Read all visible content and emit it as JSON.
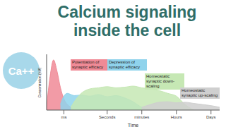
{
  "chart_data": {
    "type": "area",
    "title": "Calcium signaling inside the cell",
    "x_label": "Time",
    "y_label": "Concentration (nM)",
    "x": [
      0,
      2,
      4,
      6,
      8,
      10,
      12,
      14,
      16,
      20,
      25,
      30,
      35,
      40,
      45,
      50,
      55,
      60,
      65,
      70,
      75,
      80,
      85,
      90,
      95,
      100
    ],
    "xlim": [
      0,
      100
    ],
    "xticks": [
      {
        "value": 10,
        "label": "ms"
      },
      {
        "value": 35,
        "label": "Seconds"
      },
      {
        "value": 55,
        "label": "minutes"
      },
      {
        "value": 75,
        "label": "Hours"
      },
      {
        "value": 95,
        "label": "Days"
      }
    ],
    "ylim": [
      0,
      100
    ],
    "yticks": [
      0,
      100
    ],
    "tick_labels": "x",
    "grid": false,
    "series": [
      {
        "name": "Potentiation of synaptic efficacy",
        "color": "#f08a96",
        "values": [
          5,
          60,
          90,
          70,
          40,
          20,
          10,
          5,
          0,
          null,
          null,
          null,
          null,
          null,
          null,
          null,
          null,
          null,
          null,
          null,
          null,
          null,
          null,
          null,
          null,
          null
        ]
      },
      {
        "name": "Depression of synaptic efficacy",
        "color": "#8fd3ec",
        "values": [
          null,
          null,
          null,
          null,
          10,
          25,
          30,
          28,
          26,
          27,
          25,
          28,
          24,
          26,
          22,
          15,
          5,
          0,
          null,
          null,
          null,
          null,
          null,
          null,
          null,
          null
        ]
      },
      {
        "name": "Homeostatic synaptic down-scaling",
        "color": "#c6e8b4",
        "values": [
          null,
          null,
          null,
          null,
          null,
          null,
          null,
          5,
          15,
          30,
          38,
          40,
          42,
          40,
          41,
          43,
          40,
          38,
          35,
          30,
          25,
          10,
          0,
          null,
          null,
          null
        ]
      },
      {
        "name": "Homeostatic synaptic up-scaling",
        "color": "#cfcfcf",
        "values": [
          null,
          null,
          null,
          null,
          null,
          null,
          null,
          null,
          null,
          null,
          null,
          null,
          null,
          null,
          null,
          null,
          5,
          10,
          14,
          15,
          13,
          14,
          12,
          10,
          8,
          5
        ]
      }
    ]
  },
  "icon": {
    "label": "Ca++"
  }
}
